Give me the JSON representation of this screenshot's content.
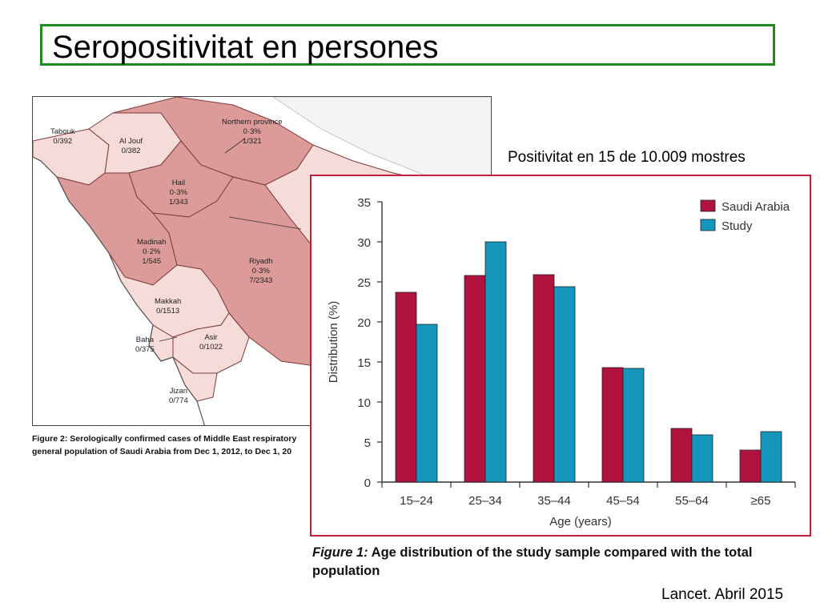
{
  "slide": {
    "title": "Seropositivitat en persones",
    "positivity_note": "Positivitat en 15 de 10.009 mostres",
    "source": "Lancet. Abril 2015"
  },
  "map": {
    "caption_label": "Figure 2:",
    "caption_text": "Serologically confirmed cases of Middle East respiratory",
    "caption_line2": "general population of Saudi Arabia from Dec 1, 2012, to Dec 1, 20",
    "colors": {
      "positive_region": "#dc9b98",
      "zero_region": "#f6dcd9",
      "sea": "#ffffff",
      "border": "#7a3b3b"
    },
    "regions": [
      {
        "name": "Tabouk",
        "lines": [
          "Tabouk",
          "0/392"
        ]
      },
      {
        "name": "Al Jouf",
        "lines": [
          "Al Jouf",
          "0/382"
        ]
      },
      {
        "name": "Northern province",
        "lines": [
          "Northern province",
          "0·3%",
          "1/321"
        ]
      },
      {
        "name": "Hail",
        "lines": [
          "Hail",
          "0·3%",
          "1/343"
        ]
      },
      {
        "name": "Madinah",
        "lines": [
          "Madinah",
          "0·2%",
          "1/545"
        ]
      },
      {
        "name": "Riyadh",
        "lines": [
          "Riyadh",
          "0·3%",
          "7/2343"
        ]
      },
      {
        "name": "Makkah",
        "lines": [
          "Makkah",
          "0/1513"
        ]
      },
      {
        "name": "Baha",
        "lines": [
          "Baha",
          "0/375"
        ]
      },
      {
        "name": "Asir",
        "lines": [
          "Asir",
          "0/1022"
        ]
      },
      {
        "name": "Jizan",
        "lines": [
          "Jizan",
          "0/774"
        ]
      }
    ]
  },
  "chart_data": {
    "type": "bar",
    "title": "",
    "xlabel": "Age (years)",
    "ylabel": "Distribution (%)",
    "categories": [
      "15–24",
      "25–34",
      "35–44",
      "45–54",
      "55–64",
      "≥65"
    ],
    "ylim": [
      0,
      35
    ],
    "yticks": [
      0,
      5,
      10,
      15,
      20,
      25,
      30,
      35
    ],
    "grid": false,
    "legend_position": "top-right",
    "series": [
      {
        "name": "Saudi Arabia",
        "color": "#b0113d",
        "values": [
          23.7,
          25.8,
          25.9,
          14.3,
          6.7,
          4.0
        ]
      },
      {
        "name": "Study",
        "color": "#1596bd",
        "values": [
          19.7,
          30.0,
          24.4,
          14.2,
          5.9,
          6.3
        ]
      }
    ]
  },
  "chart_caption": {
    "label": "Figure 1:",
    "text": "Age distribution of the study sample compared with the total population"
  }
}
